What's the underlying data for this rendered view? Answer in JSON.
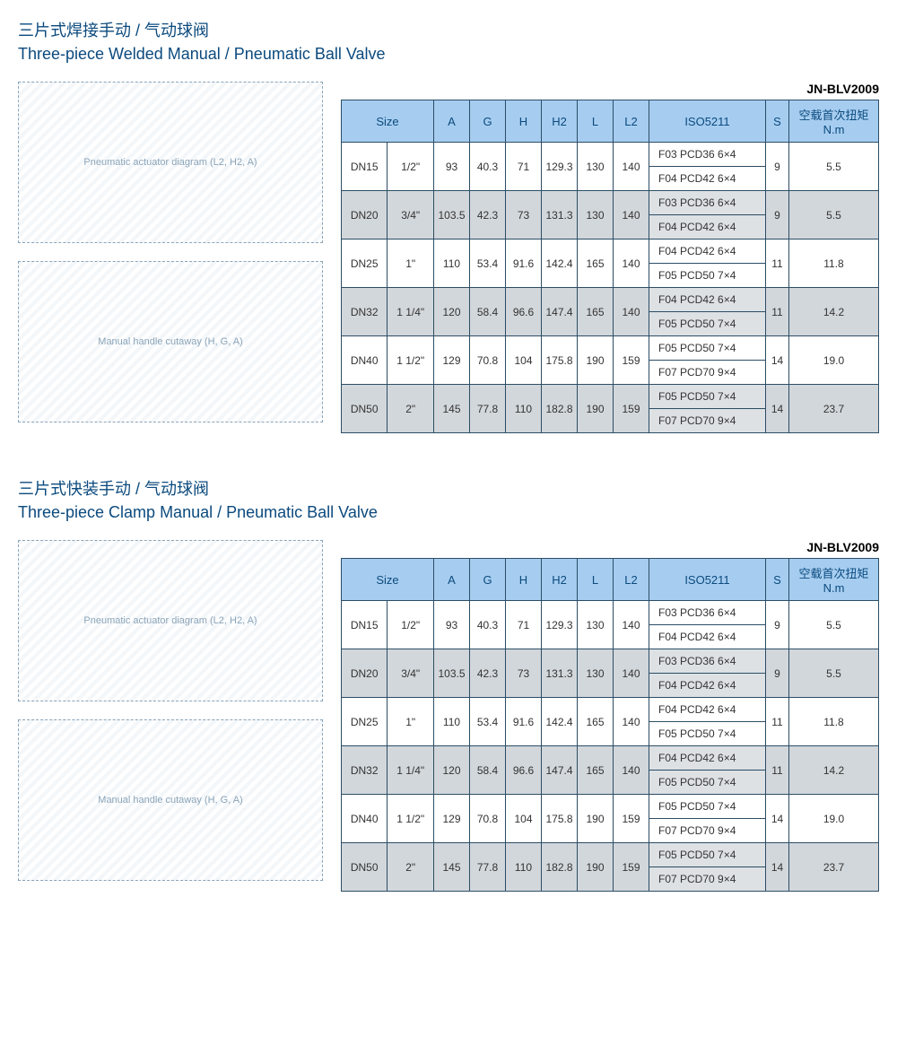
{
  "colors": {
    "header_bg": "#a6cdf0",
    "header_text": "#0b4a7e",
    "border": "#2b4d66",
    "shade_bg": "#d2d7db",
    "title": "#0b4a7e"
  },
  "sections": [
    {
      "title_cn": "三片式焊接手动 / 气动球阀",
      "title_en": "Three-piece Welded Manual / Pneumatic Ball Valve",
      "model": "JN-BLV2009",
      "diagram1_label": "Pneumatic actuator diagram (L2, H2, A)",
      "diagram2_label": "Manual handle cutaway (H, G, A)",
      "headers": [
        "Size",
        "",
        "A",
        "G",
        "H",
        "H2",
        "L",
        "L2",
        "ISO5211",
        "S",
        "空载首次扭矩 N.m"
      ],
      "rows": [
        {
          "dn": "DN15",
          "in": "1/2\"",
          "A": "93",
          "G": "40.3",
          "H": "71",
          "H2": "129.3",
          "L": "130",
          "L2": "140",
          "iso": [
            "F03  PCD36   6×4",
            "F04  PCD42   6×4"
          ],
          "S": "9",
          "torque": "5.5",
          "shade": false
        },
        {
          "dn": "DN20",
          "in": "3/4\"",
          "A": "103.5",
          "G": "42.3",
          "H": "73",
          "H2": "131.3",
          "L": "130",
          "L2": "140",
          "iso": [
            "F03  PCD36   6×4",
            "F04  PCD42   6×4"
          ],
          "S": "9",
          "torque": "5.5",
          "shade": true
        },
        {
          "dn": "DN25",
          "in": "1\"",
          "A": "110",
          "G": "53.4",
          "H": "91.6",
          "H2": "142.4",
          "L": "165",
          "L2": "140",
          "iso": [
            "F04  PCD42   6×4",
            "F05  PCD50   7×4"
          ],
          "S": "11",
          "torque": "11.8",
          "shade": false
        },
        {
          "dn": "DN32",
          "in": "1 1/4\"",
          "A": "120",
          "G": "58.4",
          "H": "96.6",
          "H2": "147.4",
          "L": "165",
          "L2": "140",
          "iso": [
            "F04  PCD42   6×4",
            "F05  PCD50   7×4"
          ],
          "S": "11",
          "torque": "14.2",
          "shade": true
        },
        {
          "dn": "DN40",
          "in": "1 1/2\"",
          "A": "129",
          "G": "70.8",
          "H": "104",
          "H2": "175.8",
          "L": "190",
          "L2": "159",
          "iso": [
            "F05  PCD50   7×4",
            "F07  PCD70   9×4"
          ],
          "S": "14",
          "torque": "19.0",
          "shade": false
        },
        {
          "dn": "DN50",
          "in": "2\"",
          "A": "145",
          "G": "77.8",
          "H": "110",
          "H2": "182.8",
          "L": "190",
          "L2": "159",
          "iso": [
            "F05  PCD50   7×4",
            "F07  PCD70   9×4"
          ],
          "S": "14",
          "torque": "23.7",
          "shade": true
        }
      ]
    },
    {
      "title_cn": "三片式快装手动 / 气动球阀",
      "title_en": "Three-piece Clamp Manual / Pneumatic Ball Valve",
      "model": "JN-BLV2009",
      "diagram1_label": "Pneumatic actuator diagram (L2, H2, A)",
      "diagram2_label": "Manual handle cutaway (H, G, A)",
      "headers": [
        "Size",
        "",
        "A",
        "G",
        "H",
        "H2",
        "L",
        "L2",
        "ISO5211",
        "S",
        "空载首次扭矩 N.m"
      ],
      "rows": [
        {
          "dn": "DN15",
          "in": "1/2\"",
          "A": "93",
          "G": "40.3",
          "H": "71",
          "H2": "129.3",
          "L": "130",
          "L2": "140",
          "iso": [
            "F03  PCD36   6×4",
            "F04  PCD42   6×4"
          ],
          "S": "9",
          "torque": "5.5",
          "shade": false
        },
        {
          "dn": "DN20",
          "in": "3/4\"",
          "A": "103.5",
          "G": "42.3",
          "H": "73",
          "H2": "131.3",
          "L": "130",
          "L2": "140",
          "iso": [
            "F03  PCD36   6×4",
            "F04  PCD42   6×4"
          ],
          "S": "9",
          "torque": "5.5",
          "shade": true
        },
        {
          "dn": "DN25",
          "in": "1\"",
          "A": "110",
          "G": "53.4",
          "H": "91.6",
          "H2": "142.4",
          "L": "165",
          "L2": "140",
          "iso": [
            "F04  PCD42   6×4",
            "F05  PCD50   7×4"
          ],
          "S": "11",
          "torque": "11.8",
          "shade": false
        },
        {
          "dn": "DN32",
          "in": "1 1/4\"",
          "A": "120",
          "G": "58.4",
          "H": "96.6",
          "H2": "147.4",
          "L": "165",
          "L2": "140",
          "iso": [
            "F04  PCD42   6×4",
            "F05  PCD50   7×4"
          ],
          "S": "11",
          "torque": "14.2",
          "shade": true
        },
        {
          "dn": "DN40",
          "in": "1 1/2\"",
          "A": "129",
          "G": "70.8",
          "H": "104",
          "H2": "175.8",
          "L": "190",
          "L2": "159",
          "iso": [
            "F05  PCD50   7×4",
            "F07  PCD70   9×4"
          ],
          "S": "14",
          "torque": "19.0",
          "shade": false
        },
        {
          "dn": "DN50",
          "in": "2\"",
          "A": "145",
          "G": "77.8",
          "H": "110",
          "H2": "182.8",
          "L": "190",
          "L2": "159",
          "iso": [
            "F05  PCD50   7×4",
            "F07  PCD70   9×4"
          ],
          "S": "14",
          "torque": "23.7",
          "shade": true
        }
      ]
    }
  ]
}
